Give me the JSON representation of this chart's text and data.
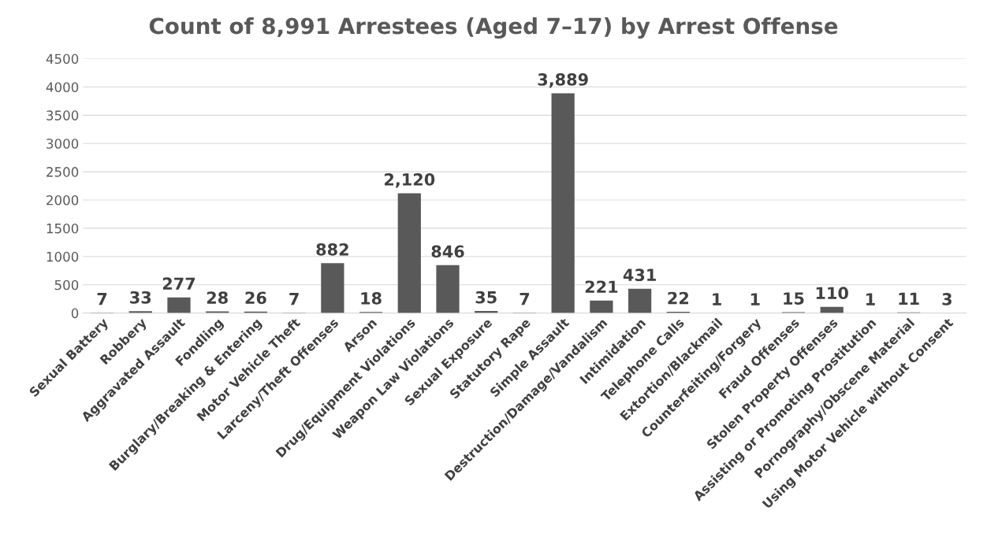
{
  "chart_data": {
    "type": "bar",
    "title": "Count of 8,991 Arrestees (Aged 7–17) by Arrest Offense",
    "categories": [
      "Sexual Battery",
      "Robbery",
      "Aggravated Assault",
      "Fondling",
      "Burglary/Breaking & Entering",
      "Motor Vehicle Theft",
      "Larceny/Theft Offenses",
      "Arson",
      "Drug/Equipment Violations",
      "Weapon Law Violations",
      "Sexual Exposure",
      "Statutory Rape",
      "Simple Assault",
      "Destruction/Damage/Vandalism",
      "Intimidation",
      "Telephone Calls",
      "Extortion/Blackmail",
      "Counterfeiting/Forgery",
      "Fraud Offenses",
      "Stolen Property Offenses",
      "Assisting or Promoting Prostitution",
      "Pornography/Obscene Material",
      "Using Motor Vehicle without Consent"
    ],
    "values": [
      7,
      33,
      277,
      28,
      26,
      7,
      882,
      18,
      2120,
      846,
      35,
      7,
      3889,
      221,
      431,
      22,
      1,
      1,
      15,
      110,
      1,
      11,
      3
    ],
    "value_labels": [
      "7",
      "33",
      "277",
      "28",
      "26",
      "7",
      "882",
      "18",
      "2,120",
      "846",
      "35",
      "7",
      "3,889",
      "221",
      "431",
      "22",
      "1",
      "1",
      "15",
      "110",
      "1",
      "11",
      "3"
    ],
    "color": "#595959",
    "ylim": [
      0,
      4500
    ],
    "yticks": [
      0,
      500,
      1000,
      1500,
      2000,
      2500,
      3000,
      3500,
      4000,
      4500
    ],
    "grid": "y",
    "legend": false
  }
}
